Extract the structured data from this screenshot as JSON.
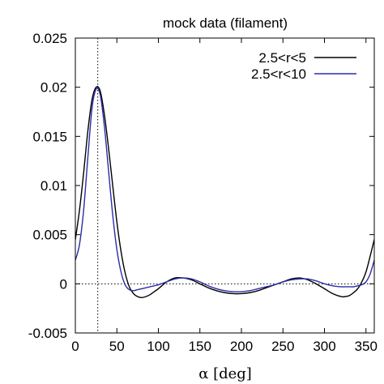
{
  "chart_data": {
    "type": "line",
    "title": "mock data  (filament)",
    "xlabel": "α [deg]",
    "ylabel": "",
    "xlim": [
      0,
      360
    ],
    "ylim": [
      -0.005,
      0.025
    ],
    "xticks": [
      0,
      50,
      100,
      150,
      200,
      250,
      300,
      350
    ],
    "xtick_labels": [
      "0",
      "50",
      "100",
      "150",
      "200",
      "250",
      "300",
      "350"
    ],
    "yticks": [
      -0.005,
      0,
      0.005,
      0.01,
      0.015,
      0.02,
      0.025
    ],
    "ytick_labels": [
      "-0.005",
      "0",
      "0.005",
      "0.01",
      "0.015",
      "0.02",
      "0.025"
    ],
    "grid": false,
    "legend_position": "top-right",
    "reference_lines": {
      "vertical_x": 27,
      "horizontal_y": 0
    },
    "series": [
      {
        "name": "2.5<r<5",
        "color": "#000000",
        "x": [
          0,
          5,
          10,
          15,
          20,
          25,
          30,
          35,
          40,
          45,
          50,
          55,
          60,
          65,
          70,
          75,
          80,
          85,
          90,
          95,
          100,
          110,
          120,
          130,
          140,
          150,
          160,
          170,
          180,
          190,
          200,
          210,
          220,
          230,
          240,
          250,
          260,
          270,
          280,
          290,
          300,
          310,
          320,
          325,
          330,
          335,
          340,
          345,
          350,
          355,
          360
        ],
        "y": [
          0.0045,
          0.0075,
          0.0113,
          0.0155,
          0.0187,
          0.02,
          0.0196,
          0.0172,
          0.0138,
          0.01,
          0.0063,
          0.0033,
          0.0011,
          -0.0003,
          -0.001,
          -0.0013,
          -0.0014,
          -0.0013,
          -0.0011,
          -0.0008,
          -0.0005,
          0.0002,
          0.0006,
          0.0006,
          0.0004,
          0.0,
          -0.0004,
          -0.0007,
          -0.0009,
          -0.001,
          -0.001,
          -0.0009,
          -0.0007,
          -0.0004,
          -0.0001,
          0.0002,
          0.0005,
          0.0006,
          0.0004,
          0.0,
          -0.0005,
          -0.001,
          -0.0013,
          -0.0013,
          -0.0012,
          -0.0009,
          -0.0005,
          0.0002,
          0.0012,
          0.0028,
          0.0045
        ]
      },
      {
        "name": "2.5<r<10",
        "color": "#2b2ba8",
        "x": [
          0,
          5,
          10,
          15,
          20,
          25,
          30,
          35,
          40,
          45,
          50,
          55,
          60,
          65,
          70,
          75,
          80,
          85,
          90,
          95,
          100,
          110,
          120,
          130,
          140,
          150,
          160,
          170,
          180,
          190,
          200,
          210,
          220,
          230,
          240,
          250,
          260,
          270,
          280,
          290,
          300,
          310,
          320,
          325,
          330,
          335,
          340,
          345,
          350,
          355,
          360
        ],
        "y": [
          0.0024,
          0.004,
          0.0075,
          0.0128,
          0.0178,
          0.0198,
          0.0192,
          0.016,
          0.0115,
          0.007,
          0.0035,
          0.0012,
          -0.0001,
          -0.0006,
          -0.0007,
          -0.0006,
          -0.0005,
          -0.0004,
          -0.0003,
          -0.0002,
          -0.0001,
          0.0002,
          0.0005,
          0.0006,
          0.0005,
          0.0002,
          -0.0002,
          -0.0005,
          -0.0007,
          -0.0008,
          -0.0008,
          -0.0007,
          -0.0005,
          -0.0003,
          -0.0001,
          0.0002,
          0.0004,
          0.0005,
          0.0005,
          0.0003,
          0.0,
          -0.0002,
          -0.0003,
          -0.0003,
          -0.0003,
          -0.0003,
          -0.0002,
          -0.0001,
          0.0002,
          0.001,
          0.0024
        ]
      }
    ]
  }
}
